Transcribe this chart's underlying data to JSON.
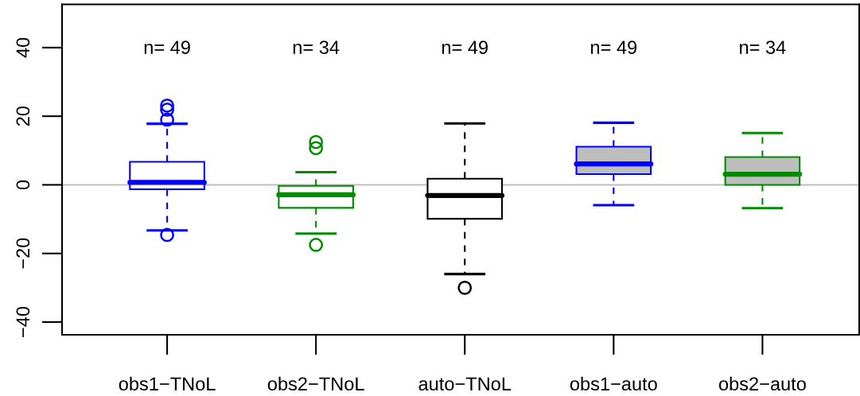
{
  "chart_data": {
    "type": "box",
    "categories": [
      "obs1−TNoL",
      "obs2−TNoL",
      "auto−TNoL",
      "obs1−auto",
      "obs2−auto"
    ],
    "series": [
      {
        "color": "#ffffff",
        "colors": [
          "#0000ff",
          "#008b00",
          "#000000",
          null,
          null
        ],
        "boxes": [
          {
            "low": -13.3,
            "q1": -1.3,
            "median": 0.7,
            "q3": 6.7,
            "high": 17.8,
            "outliers": [
              23.1,
              21.9,
              19.0,
              -14.6
            ]
          },
          {
            "low": -14.2,
            "q1": -6.7,
            "median": -2.9,
            "q3": -0.3,
            "high": 3.7,
            "outliers": [
              12.5,
              10.7,
              -17.5
            ]
          },
          {
            "low": -26.0,
            "q1": -9.9,
            "median": -3.1,
            "q3": 1.8,
            "high": 17.9,
            "outliers": [
              -30.0
            ]
          },
          null,
          null
        ]
      },
      {
        "color": "#bebebe",
        "colors": [
          null,
          null,
          null,
          "#0000ff",
          "#008b00"
        ],
        "boxes": [
          null,
          null,
          null,
          {
            "low": -5.9,
            "q1": 3.1,
            "median": 6.1,
            "q3": 11.1,
            "high": 18.1
          },
          {
            "low": -6.8,
            "q1": 0,
            "median": 3.1,
            "q3": 8.1,
            "high": 15.1
          }
        ]
      }
    ],
    "ylim": [
      -43.7,
      52.6
    ],
    "yticks": [
      {
        "value": -40,
        "label": "−40"
      },
      {
        "value": -20,
        "label": "−20"
      },
      0,
      20,
      40
    ],
    "ref_lines": [
      {
        "axis": "y",
        "value": 0,
        "color": "#bebebe"
      }
    ],
    "annotations": [
      "n= 49",
      "n= 34",
      "n= 49",
      "n= 49",
      "n= 34"
    ],
    "line_style": "dashed",
    "marker": "circle",
    "grid": false,
    "legend": false
  }
}
